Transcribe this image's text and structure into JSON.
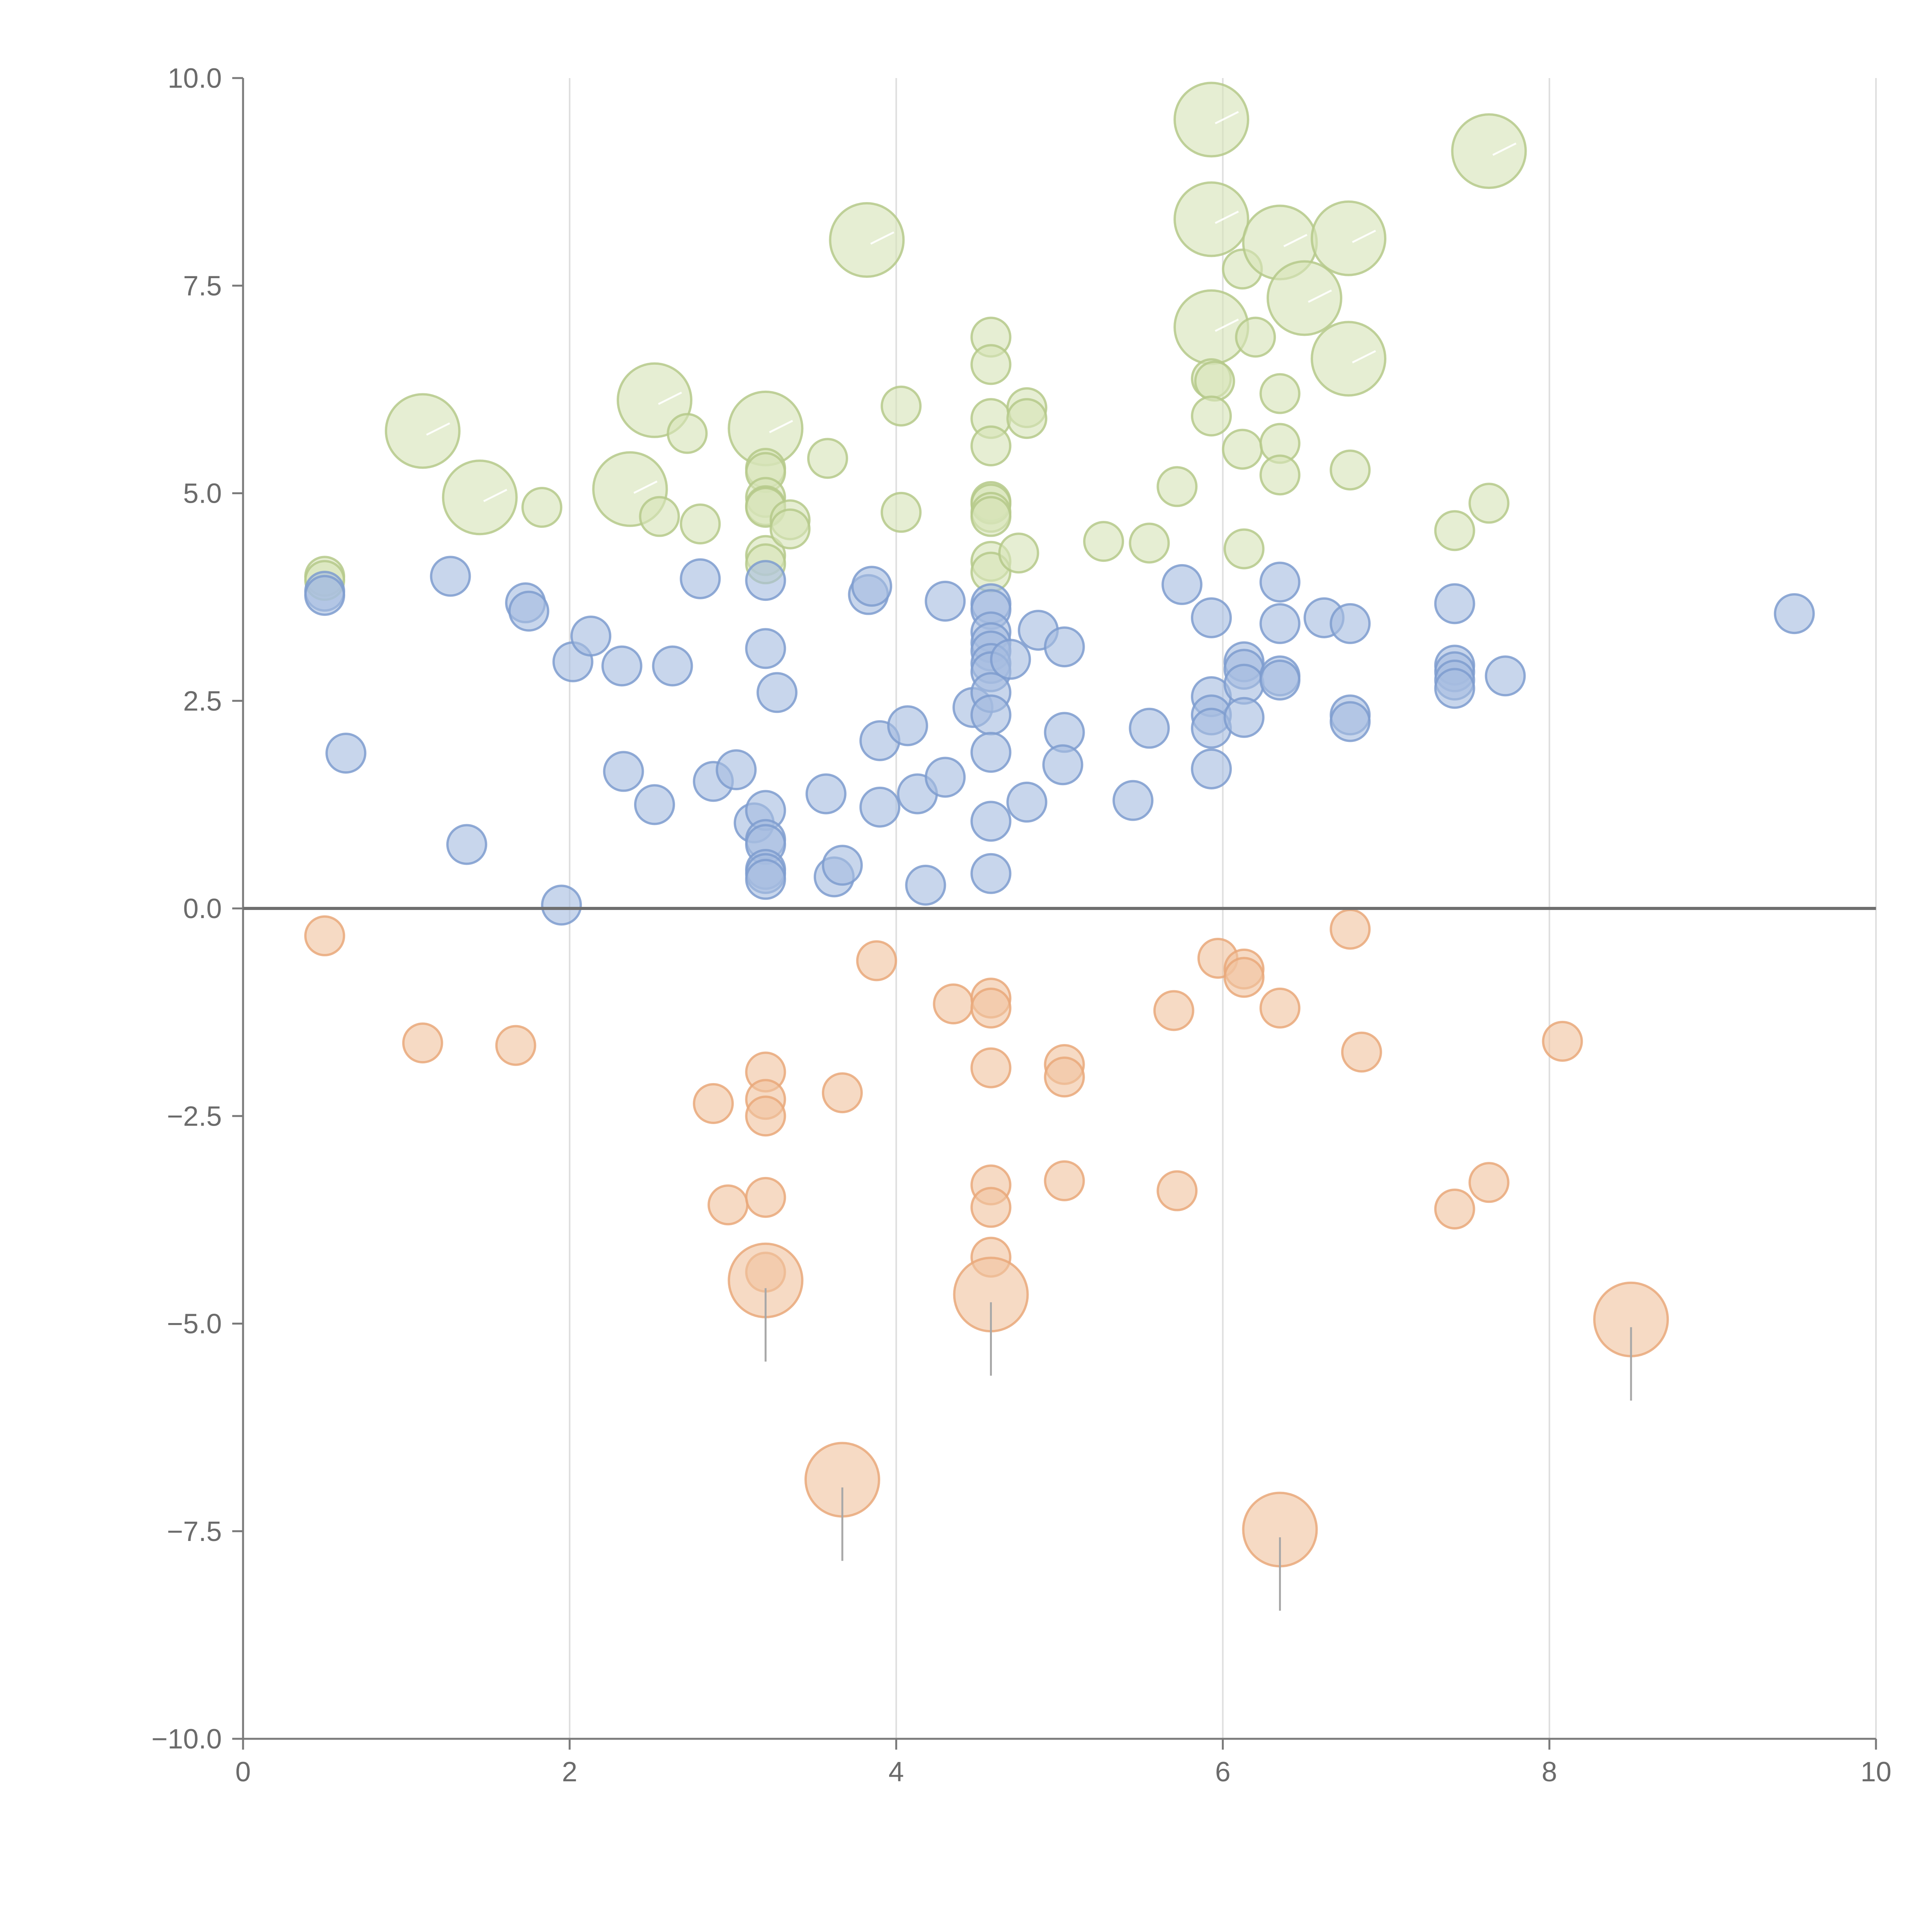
{
  "chart_data": {
    "type": "scatter",
    "title": "",
    "xlabel": "",
    "ylabel": "",
    "xlim": [
      0,
      10
    ],
    "ylim": [
      -10,
      10
    ],
    "x_ticks": [
      "0",
      "2",
      "4",
      "6",
      "8",
      "10"
    ],
    "y_ticks": [
      "10.0",
      "7.5",
      "5.0",
      "2.5",
      "0.0",
      "−2.5",
      "−5.0",
      "−7.5",
      "−10.0"
    ],
    "x_tick_values": [
      0,
      2,
      4,
      6,
      8,
      10
    ],
    "y_tick_values": [
      10,
      7.5,
      5,
      2.5,
      0,
      -2.5,
      -5,
      -7.5,
      -10
    ],
    "grid": "vertical",
    "reference_line_y": 0,
    "marker_style": "semi-transparent circles; larger circles carry a short leader line",
    "series": [
      {
        "color": "#b5c98a",
        "fill": "#d6e3b8",
        "points": [
          [
            0.5,
            4.0
          ],
          [
            0.5,
            3.95
          ],
          [
            1.1,
            5.75,
            "big"
          ],
          [
            1.45,
            4.95,
            "big"
          ],
          [
            1.83,
            4.83
          ],
          [
            2.37,
            5.05,
            "big"
          ],
          [
            2.52,
            6.12,
            "big"
          ],
          [
            2.55,
            4.72
          ],
          [
            2.72,
            5.72
          ],
          [
            2.8,
            4.63
          ],
          [
            3.2,
            5.78,
            "big"
          ],
          [
            3.2,
            5.3
          ],
          [
            3.2,
            5.25
          ],
          [
            3.2,
            4.95
          ],
          [
            3.2,
            4.85
          ],
          [
            3.2,
            4.83
          ],
          [
            3.2,
            4.25
          ],
          [
            3.2,
            4.15
          ],
          [
            3.35,
            4.68
          ],
          [
            3.35,
            4.57
          ],
          [
            3.58,
            5.42
          ],
          [
            3.82,
            8.05,
            "big"
          ],
          [
            4.03,
            6.05
          ],
          [
            4.03,
            4.77
          ],
          [
            4.58,
            6.88
          ],
          [
            4.58,
            6.55
          ],
          [
            4.58,
            5.9
          ],
          [
            4.58,
            5.57
          ],
          [
            4.58,
            4.9
          ],
          [
            4.58,
            4.87
          ],
          [
            4.58,
            4.77
          ],
          [
            4.58,
            4.72
          ],
          [
            4.58,
            4.18
          ],
          [
            4.58,
            4.05
          ],
          [
            4.75,
            4.28
          ],
          [
            4.8,
            6.03
          ],
          [
            4.8,
            5.9
          ],
          [
            5.27,
            4.42
          ],
          [
            5.55,
            4.4
          ],
          [
            5.72,
            5.08
          ],
          [
            5.93,
            9.5,
            "big"
          ],
          [
            5.93,
            8.3,
            "big"
          ],
          [
            5.93,
            7.0,
            "big"
          ],
          [
            5.93,
            6.38
          ],
          [
            5.95,
            6.35
          ],
          [
            5.93,
            5.93
          ],
          [
            6.12,
            7.7
          ],
          [
            6.12,
            5.53
          ],
          [
            6.13,
            4.33
          ],
          [
            6.2,
            6.88
          ],
          [
            6.35,
            8.02,
            "big"
          ],
          [
            6.35,
            6.2
          ],
          [
            6.35,
            5.6
          ],
          [
            6.35,
            5.22
          ],
          [
            6.5,
            7.35,
            "big"
          ],
          [
            6.77,
            8.07,
            "big"
          ],
          [
            6.77,
            6.62,
            "big"
          ],
          [
            6.78,
            5.28
          ],
          [
            7.42,
            4.55
          ],
          [
            7.63,
            9.12,
            "big"
          ],
          [
            7.63,
            4.88
          ]
        ]
      },
      {
        "color": "#7e9ccf",
        "fill": "#a7bde0",
        "points": [
          [
            0.5,
            3.82
          ],
          [
            0.5,
            3.77
          ],
          [
            0.63,
            1.87
          ],
          [
            1.27,
            4.0
          ],
          [
            1.37,
            0.77
          ],
          [
            1.73,
            3.68
          ],
          [
            1.75,
            3.58
          ],
          [
            1.95,
            0.04
          ],
          [
            2.02,
            2.97
          ],
          [
            2.13,
            3.28
          ],
          [
            2.32,
            2.92
          ],
          [
            2.33,
            1.65
          ],
          [
            2.52,
            1.25
          ],
          [
            2.63,
            2.92
          ],
          [
            2.8,
            3.97
          ],
          [
            2.88,
            1.53
          ],
          [
            3.02,
            1.67
          ],
          [
            3.13,
            1.03
          ],
          [
            3.2,
            3.95
          ],
          [
            3.2,
            3.13
          ],
          [
            3.2,
            1.18
          ],
          [
            3.2,
            0.83
          ],
          [
            3.2,
            0.77
          ],
          [
            3.2,
            0.47
          ],
          [
            3.2,
            0.42
          ],
          [
            3.2,
            0.35
          ],
          [
            3.27,
            2.6
          ],
          [
            3.57,
            1.38
          ],
          [
            3.62,
            0.38
          ],
          [
            3.67,
            0.52
          ],
          [
            3.83,
            3.78
          ],
          [
            3.85,
            3.88
          ],
          [
            3.9,
            2.02
          ],
          [
            3.9,
            1.22
          ],
          [
            4.07,
            2.2
          ],
          [
            4.13,
            1.38
          ],
          [
            4.18,
            0.28
          ],
          [
            4.3,
            3.7
          ],
          [
            4.3,
            1.58
          ],
          [
            4.47,
            2.42
          ],
          [
            4.58,
            3.67
          ],
          [
            4.58,
            3.6
          ],
          [
            4.58,
            3.33
          ],
          [
            4.58,
            3.2
          ],
          [
            4.58,
            3.1
          ],
          [
            4.58,
            2.95
          ],
          [
            4.58,
            2.85
          ],
          [
            4.58,
            2.6
          ],
          [
            4.58,
            2.33
          ],
          [
            4.58,
            1.88
          ],
          [
            4.58,
            1.05
          ],
          [
            4.58,
            0.42
          ],
          [
            4.7,
            3.0
          ],
          [
            4.8,
            1.28
          ],
          [
            4.87,
            3.35
          ],
          [
            5.03,
            3.15
          ],
          [
            5.03,
            2.12
          ],
          [
            5.02,
            1.73
          ],
          [
            5.45,
            1.3
          ],
          [
            5.55,
            2.17
          ],
          [
            5.75,
            3.9
          ],
          [
            5.93,
            3.5
          ],
          [
            5.93,
            2.55
          ],
          [
            5.93,
            2.33
          ],
          [
            5.93,
            2.17
          ],
          [
            5.93,
            1.68
          ],
          [
            6.13,
            2.97
          ],
          [
            6.13,
            2.88
          ],
          [
            6.13,
            2.7
          ],
          [
            6.13,
            2.3
          ],
          [
            6.35,
            3.93
          ],
          [
            6.35,
            3.43
          ],
          [
            6.35,
            2.8
          ],
          [
            6.35,
            2.75
          ],
          [
            6.62,
            3.5
          ],
          [
            6.78,
            3.43
          ],
          [
            6.78,
            2.33
          ],
          [
            6.78,
            2.25
          ],
          [
            7.42,
            3.67
          ],
          [
            7.42,
            2.93
          ],
          [
            7.42,
            2.85
          ],
          [
            7.42,
            2.75
          ],
          [
            7.42,
            2.65
          ],
          [
            7.73,
            2.8
          ],
          [
            9.5,
            3.55
          ]
        ]
      },
      {
        "color": "#e9a87a",
        "fill": "#f0c3a0",
        "points": [
          [
            0.5,
            -0.33
          ],
          [
            1.1,
            -1.62
          ],
          [
            1.67,
            -1.65
          ],
          [
            2.88,
            -2.35
          ],
          [
            2.97,
            -3.57
          ],
          [
            3.2,
            -1.97
          ],
          [
            3.2,
            -2.3
          ],
          [
            3.2,
            -2.5
          ],
          [
            3.2,
            -3.48
          ],
          [
            3.2,
            -4.38
          ],
          [
            3.2,
            -4.48,
            "big"
          ],
          [
            3.67,
            -2.22
          ],
          [
            3.67,
            -6.88,
            "big"
          ],
          [
            3.88,
            -0.63
          ],
          [
            4.35,
            -1.15
          ],
          [
            4.58,
            -1.08
          ],
          [
            4.58,
            -1.2
          ],
          [
            4.58,
            -1.92
          ],
          [
            4.58,
            -3.33
          ],
          [
            4.58,
            -3.6
          ],
          [
            4.58,
            -4.2
          ],
          [
            4.58,
            -4.65,
            "big"
          ],
          [
            5.03,
            -1.88
          ],
          [
            5.03,
            -2.03
          ],
          [
            5.03,
            -3.28
          ],
          [
            5.7,
            -1.23
          ],
          [
            5.72,
            -3.4
          ],
          [
            5.97,
            -0.6
          ],
          [
            6.13,
            -0.73
          ],
          [
            6.13,
            -0.83
          ],
          [
            6.35,
            -1.2
          ],
          [
            6.35,
            -7.48,
            "big"
          ],
          [
            6.78,
            -0.25
          ],
          [
            6.85,
            -1.73
          ],
          [
            7.42,
            -3.62
          ],
          [
            7.63,
            -3.3
          ],
          [
            8.08,
            -1.6
          ],
          [
            8.5,
            -4.95,
            "big"
          ]
        ]
      }
    ]
  }
}
